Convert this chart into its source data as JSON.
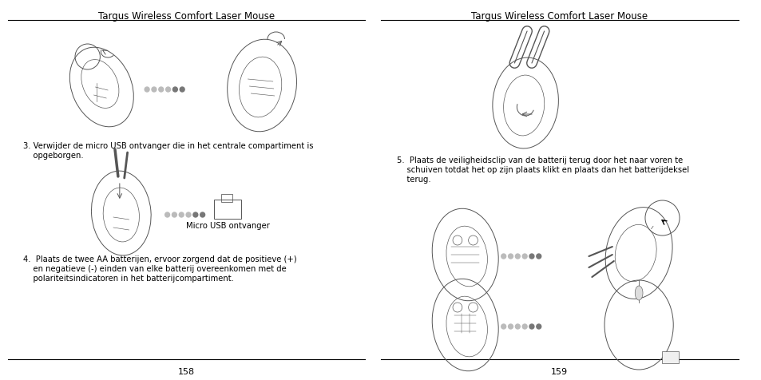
{
  "bg_color": "#ffffff",
  "page_width": 9.54,
  "page_height": 4.77,
  "left_page": {
    "title": "Targus Wireless Comfort Laser Mouse",
    "page_num": "158",
    "step3_line1": "3. Verwijder de micro USB ontvanger die in het centrale compartiment is",
    "step3_line2": "    opgeborgen.",
    "step4_line1": "4.  Plaats de twee AA batterijen, ervoor zorgend dat de positieve (+)",
    "step4_line2": "    en negatieve (-) einden van elke batterij overeenkomen met de",
    "step4_line3": "    polariteitsindicatoren in het batterijcompartiment.",
    "caption": "Micro USB ontvanger"
  },
  "right_page": {
    "title": "Targus Wireless Comfort Laser Mouse",
    "page_num": "159",
    "step5_line1": "5.  Plaats de veiligheidsclip van de batterij terug door het naar voren te",
    "step5_line2": "    schuiven totdat het op zijn plaats klikt en plaats dan het batterijdeksel",
    "step5_line3": "    terug."
  },
  "text_color": "#000000",
  "line_color": "#000000",
  "illus_color": "#555555",
  "dot_gray": "#bbbbbb",
  "dot_dark": "#777777",
  "title_fontsize": 8.5,
  "body_fontsize": 7.2,
  "caption_fontsize": 7.2,
  "page_num_fontsize": 8
}
